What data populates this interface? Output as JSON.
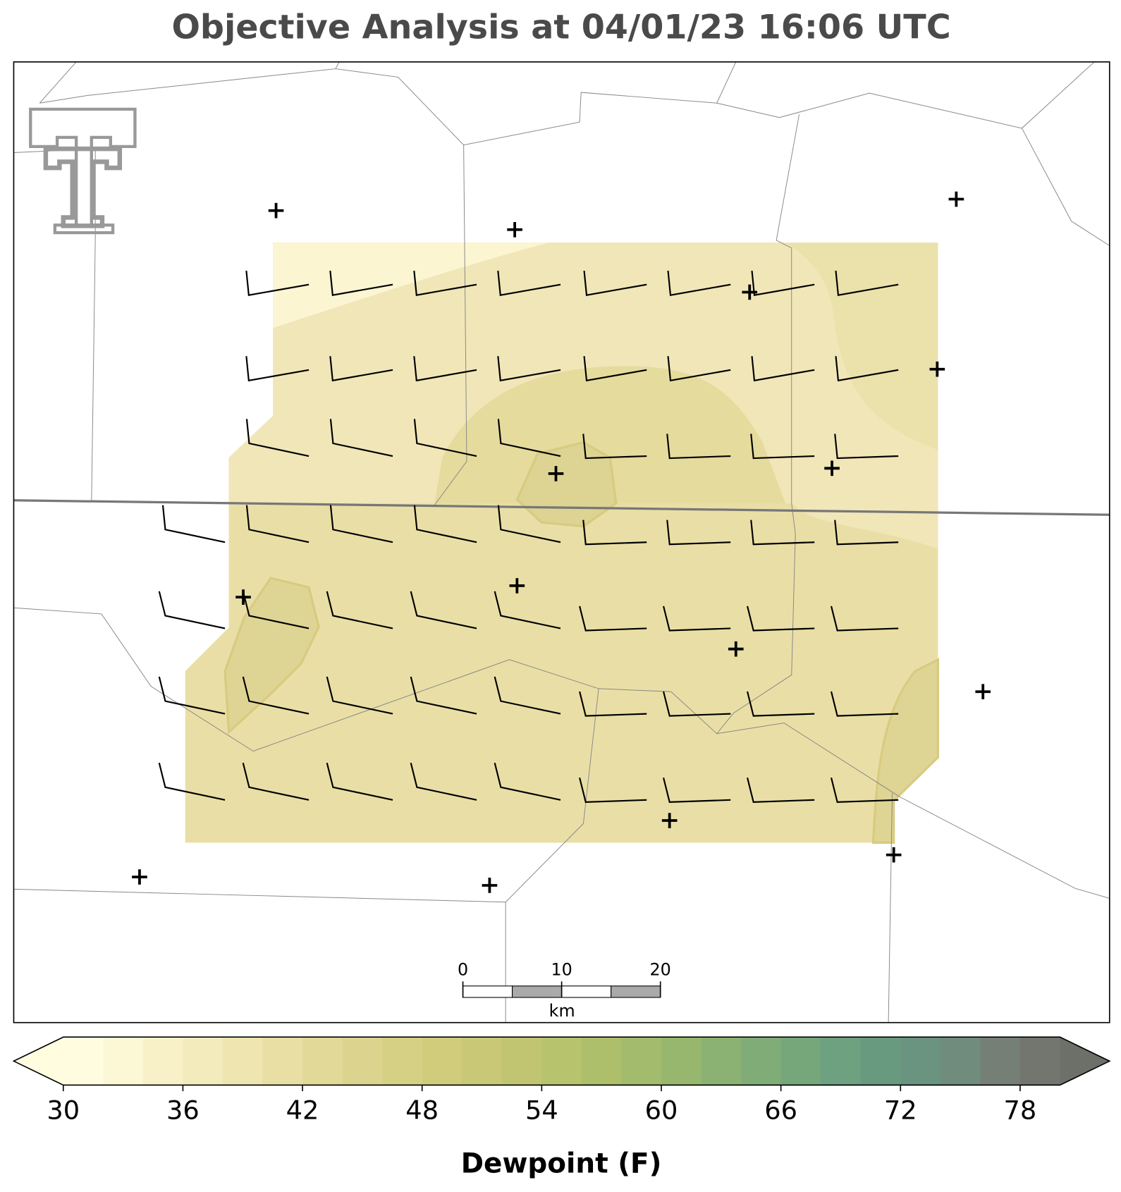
{
  "title": "Objective Analysis at 04/01/23 16:06 UTC",
  "colorbar": {
    "label": "Dewpoint (F)",
    "lim": [
      30,
      80
    ],
    "ticks": [
      30,
      36,
      42,
      48,
      54,
      60,
      66,
      72,
      78
    ],
    "colors": [
      "#fffce0",
      "#fcf7d4",
      "#f8f1c8",
      "#f3ebbc",
      "#eee5b0",
      "#e9dfa5",
      "#e2d998",
      "#dcd48e",
      "#d6d084",
      "#d0cc7c",
      "#c9c876",
      "#c1c571",
      "#b8c36d",
      "#adbf6b",
      "#a2bb6c",
      "#97b76e",
      "#8bb272",
      "#80ad77",
      "#76a77b",
      "#6da17f",
      "#689a80",
      "#6a9380",
      "#6f8c7d",
      "#767f76",
      "#72766e"
    ],
    "under": "#fffce0",
    "over": "#6d7068"
  },
  "scale_bar": {
    "ticks": [
      0,
      10,
      20
    ],
    "unit": "km"
  }
}
